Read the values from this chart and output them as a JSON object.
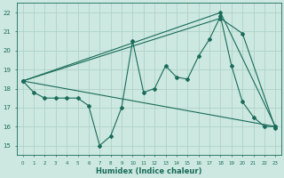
{
  "xlabel": "Humidex (Indice chaleur)",
  "bg_color": "#cce8e0",
  "line_color": "#1a6b5a",
  "grid_color": "#aacfc4",
  "xlim": [
    -0.5,
    23.5
  ],
  "ylim": [
    14.5,
    22.5
  ],
  "xticks": [
    0,
    1,
    2,
    3,
    4,
    5,
    6,
    7,
    8,
    9,
    10,
    11,
    12,
    13,
    14,
    15,
    16,
    17,
    18,
    19,
    20,
    21,
    22,
    23
  ],
  "yticks": [
    15,
    16,
    17,
    18,
    19,
    20,
    21,
    22
  ],
  "zigzag": {
    "x": [
      0,
      1,
      2,
      3,
      4,
      5,
      6,
      7,
      8,
      9,
      10,
      11,
      12,
      13,
      14,
      15,
      16,
      17,
      18,
      19,
      20,
      21,
      22,
      23
    ],
    "y": [
      18.4,
      17.8,
      17.5,
      17.5,
      17.5,
      17.5,
      17.1,
      15.0,
      15.5,
      17.0,
      20.5,
      17.8,
      18.0,
      19.2,
      18.6,
      18.5,
      19.7,
      20.6,
      21.8,
      19.2,
      17.3,
      16.5,
      16.0,
      16.0
    ]
  },
  "straight_lines": [
    {
      "x": [
        0,
        23
      ],
      "y": [
        18.4,
        16.0
      ],
      "has_markers": false
    },
    {
      "x": [
        0,
        18,
        23
      ],
      "y": [
        18.4,
        22.0,
        16.0
      ],
      "has_markers": true
    },
    {
      "x": [
        0,
        18,
        20,
        23
      ],
      "y": [
        18.4,
        21.7,
        20.9,
        15.9
      ],
      "has_markers": true
    }
  ]
}
